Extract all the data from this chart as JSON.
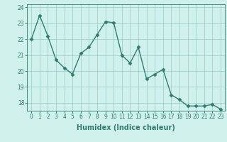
{
  "x": [
    0,
    1,
    2,
    3,
    4,
    5,
    6,
    7,
    8,
    9,
    10,
    11,
    12,
    13,
    14,
    15,
    16,
    17,
    18,
    19,
    20,
    21,
    22,
    23
  ],
  "y": [
    22.0,
    23.5,
    22.2,
    20.7,
    20.2,
    19.8,
    21.1,
    21.5,
    22.3,
    23.1,
    23.05,
    21.0,
    20.5,
    21.5,
    19.5,
    19.8,
    20.1,
    18.5,
    18.2,
    17.8,
    17.8,
    17.8,
    17.9,
    17.6
  ],
  "line_color": "#2e7d6e",
  "marker": "D",
  "marker_size": 2.5,
  "bg_color": "#d0f0ec",
  "grid_color": "#a0d0cc",
  "xlabel": "Humidex (Indice chaleur)",
  "xlim": [
    -0.5,
    23.5
  ],
  "ylim": [
    17.5,
    24.2
  ],
  "yticks": [
    18,
    19,
    20,
    21,
    22,
    23,
    24
  ],
  "xticks": [
    0,
    1,
    2,
    3,
    4,
    5,
    6,
    7,
    8,
    9,
    10,
    11,
    12,
    13,
    14,
    15,
    16,
    17,
    18,
    19,
    20,
    21,
    22,
    23
  ],
  "xlabel_fontsize": 7,
  "tick_fontsize": 5.5,
  "line_width": 1.0
}
